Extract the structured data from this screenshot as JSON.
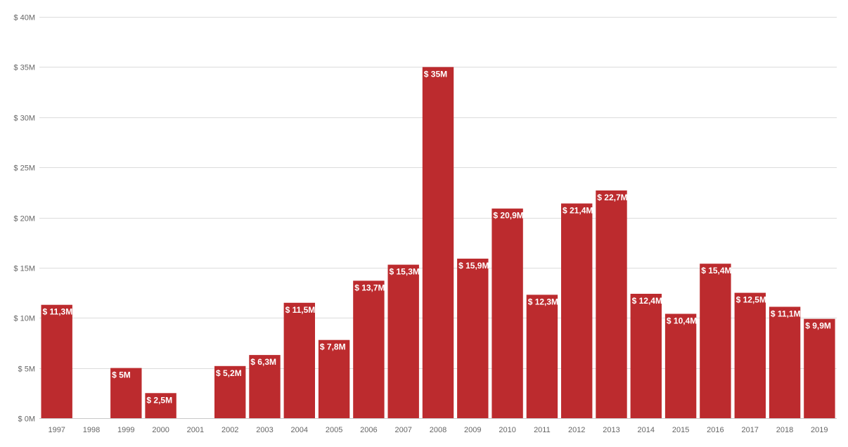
{
  "chart_data": {
    "type": "bar",
    "categories": [
      "1997",
      "1998",
      "1999",
      "2000",
      "2001",
      "2002",
      "2003",
      "2004",
      "2005",
      "2006",
      "2007",
      "2008",
      "2009",
      "2010",
      "2011",
      "2012",
      "2013",
      "2014",
      "2015",
      "2016",
      "2017",
      "2018",
      "2019"
    ],
    "values": [
      11.3,
      null,
      5,
      2.5,
      null,
      5.2,
      6.3,
      11.5,
      7.8,
      13.7,
      15.3,
      35,
      15.9,
      20.9,
      12.3,
      21.4,
      22.7,
      12.4,
      10.4,
      15.4,
      12.5,
      11.1,
      9.9
    ],
    "data_labels": [
      "$ 11,3M",
      "",
      "$ 5M",
      "$ 2,5M",
      "",
      "$ 5,2M",
      "$ 6,3M",
      "$ 11,5M",
      "$ 7,8M",
      "$ 13,7M",
      "$ 15,3M",
      "$ 35M",
      "$ 15,9M",
      "$ 20,9M",
      "$ 12,3M",
      "$ 21,4M",
      "$ 22,7M",
      "$ 12,4M",
      "$ 10,4M",
      "$ 15,4M",
      "$ 12,5M",
      "$ 11,1M",
      "$ 9,9M"
    ],
    "ylim": [
      0,
      40
    ],
    "yticks": [
      0,
      5,
      10,
      15,
      20,
      25,
      30,
      35,
      40
    ],
    "ytick_labels": [
      "$ 0M",
      "$ 5M",
      "$ 10M",
      "$ 15M",
      "$ 20M",
      "$ 25M",
      "$ 30M",
      "$ 35M",
      "$ 40M"
    ],
    "grid": true,
    "bar_color": "#bc2b2e"
  }
}
